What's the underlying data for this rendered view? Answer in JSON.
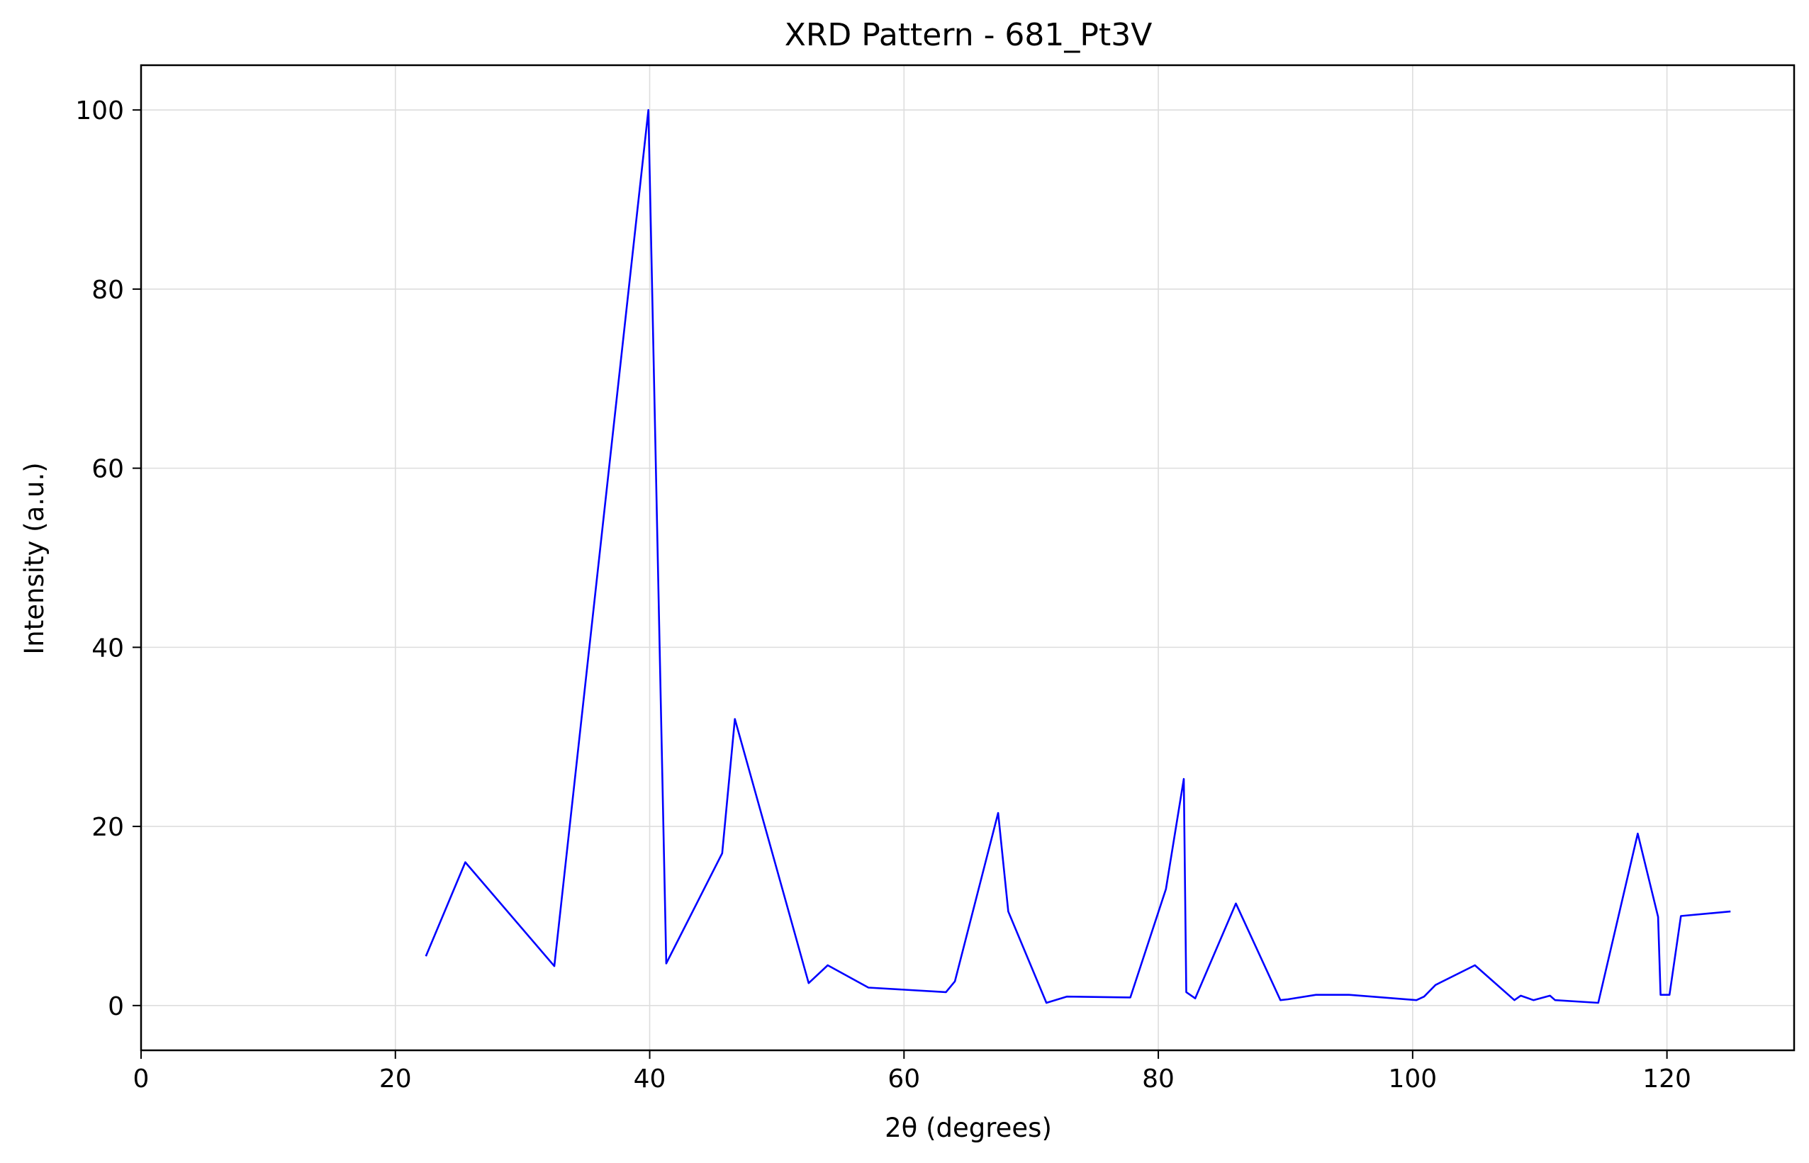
{
  "chart_data": {
    "type": "line",
    "title": "XRD Pattern - 681_Pt3V",
    "xlabel": "2θ (degrees)",
    "ylabel": "Intensity (a.u.)",
    "xlim": [
      0,
      130
    ],
    "ylim": [
      -5,
      105
    ],
    "xticks": [
      0,
      20,
      40,
      60,
      80,
      100,
      120
    ],
    "yticks": [
      0,
      20,
      40,
      60,
      80,
      100
    ],
    "grid": true,
    "legend": "none",
    "series": [
      {
        "color": "#0000ff",
        "x": [
          22.4,
          25.5,
          32.5,
          39.9,
          41.3,
          45.7,
          46.7,
          52.5,
          54.0,
          57.2,
          63.3,
          64.0,
          67.4,
          68.2,
          71.2,
          72.8,
          77.8,
          80.6,
          82.0,
          82.2,
          82.9,
          86.1,
          89.6,
          90.2,
          92.4,
          95.0,
          100.3,
          100.9,
          101.8,
          104.9,
          108.0,
          108.5,
          109.5,
          110.8,
          111.2,
          114.6,
          117.7,
          119.3,
          119.5,
          120.2,
          121.1,
          125.0
        ],
        "y": [
          5.5,
          16.0,
          4.4,
          100.0,
          4.7,
          17.0,
          32.0,
          2.5,
          4.5,
          2.0,
          1.5,
          2.7,
          21.5,
          10.5,
          0.3,
          1.0,
          0.9,
          13.0,
          25.3,
          1.5,
          0.8,
          11.4,
          0.6,
          0.7,
          1.2,
          1.2,
          0.6,
          1.0,
          2.3,
          4.5,
          0.6,
          1.1,
          0.6,
          1.1,
          0.6,
          0.3,
          19.2,
          9.9,
          1.2,
          1.2,
          10.0,
          10.5
        ]
      }
    ]
  }
}
